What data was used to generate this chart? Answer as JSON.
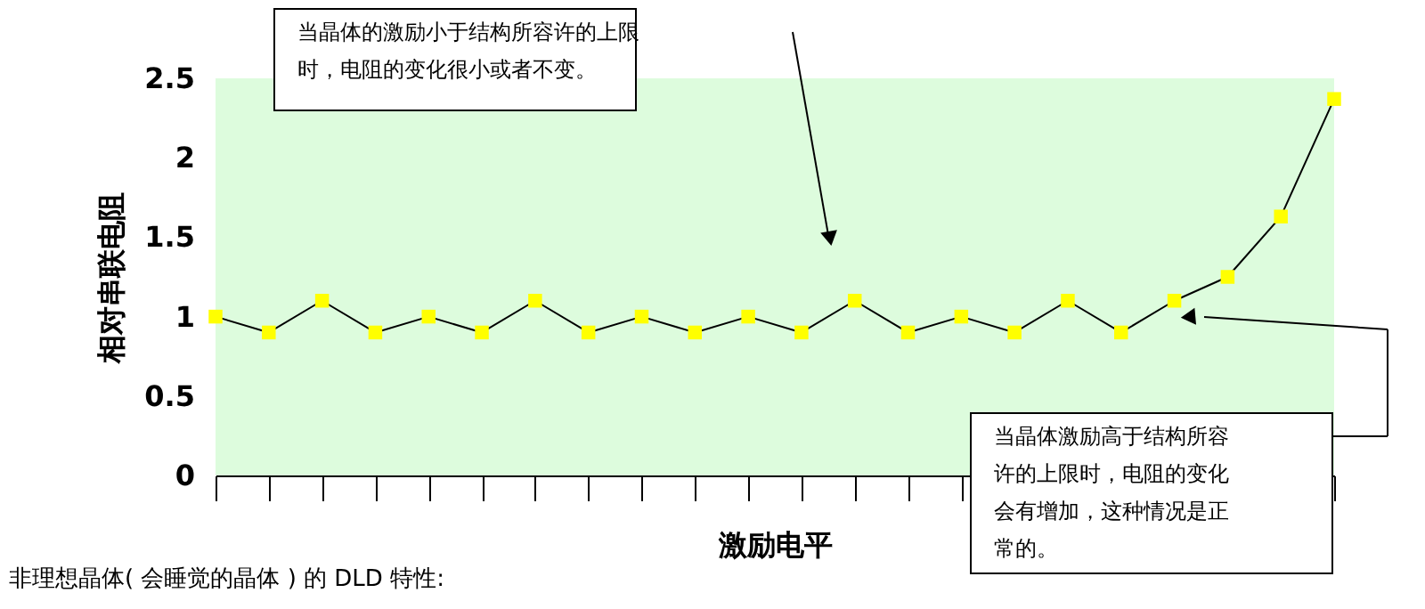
{
  "chart_data": {
    "type": "line",
    "xlabel": "激励电平",
    "ylabel": "相对串联电阻",
    "categories": [
      null,
      null,
      null,
      null,
      null,
      null,
      null,
      null,
      null,
      null,
      null,
      null,
      null,
      null,
      null,
      null,
      null,
      null,
      null,
      null,
      null,
      null
    ],
    "series": [
      {
        "color": "#ffff00",
        "values": [
          1,
          0.9,
          1.1,
          0.9,
          1,
          0.9,
          1.1,
          0.9,
          1,
          0.9,
          1,
          0.9,
          1.1,
          0.9,
          1,
          0.9,
          1.1,
          0.9,
          1.1,
          1.25,
          1.63,
          2.37
        ]
      }
    ],
    "ylim": [
      0,
      2.5
    ],
    "yticks": [
      0,
      0.5,
      1,
      1.5,
      2,
      2.5
    ],
    "grid": false,
    "legend": false,
    "marker": "square",
    "line_style": "solid",
    "annotations": [
      "当晶体的激励小于结构所容许的上限时，电阻的变化很小或者不变。",
      "当晶体激励高于结构所容许的上限时，电阻的变化会有增加，这种情况是正常的。",
      "非理想晶体( 会睡觉的晶体 ) 的 DLD 特性:"
    ]
  }
}
